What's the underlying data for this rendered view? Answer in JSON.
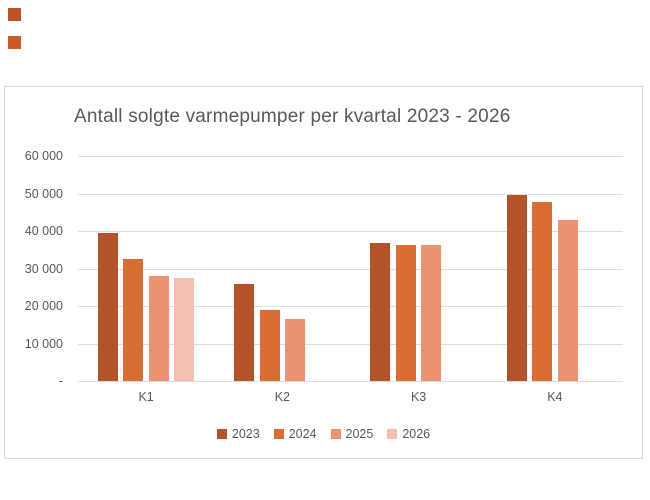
{
  "decor": {
    "squares": [
      {
        "name": "orange-square-top",
        "color": "#BE5227"
      },
      {
        "name": "orange-square-bottom",
        "color": "#CA5A2C"
      }
    ]
  },
  "chart_data": {
    "type": "bar",
    "title": "Antall solgte varmepumper per kvartal 2023 - 2026",
    "categories": [
      "K1",
      "K2",
      "K3",
      "K4"
    ],
    "series": [
      {
        "name": "2023",
        "color": "#B4522A",
        "values": [
          39500,
          25800,
          36800,
          49700
        ]
      },
      {
        "name": "2024",
        "color": "#D96E34",
        "values": [
          32500,
          19000,
          36300,
          47700
        ]
      },
      {
        "name": "2025",
        "color": "#EC9171",
        "values": [
          28000,
          16500,
          36400,
          42900
        ]
      },
      {
        "name": "2026",
        "color": "#F3C0B1",
        "values": [
          27500,
          null,
          null,
          null
        ]
      }
    ],
    "ylim": [
      0,
      60000
    ],
    "yticks": [
      {
        "label": "60 000",
        "value": 60000
      },
      {
        "label": "50 000",
        "value": 50000
      },
      {
        "label": "40 000",
        "value": 40000
      },
      {
        "label": "30 000",
        "value": 30000
      },
      {
        "label": "20 000",
        "value": 20000
      },
      {
        "label": "10 000",
        "value": 10000
      },
      {
        "label": "-",
        "value": 0
      }
    ],
    "grid": true,
    "gridline_color": "#DCDCDC",
    "border_color": "#D9D9D9",
    "text_color": "#595959",
    "legend_position": "bottom"
  }
}
